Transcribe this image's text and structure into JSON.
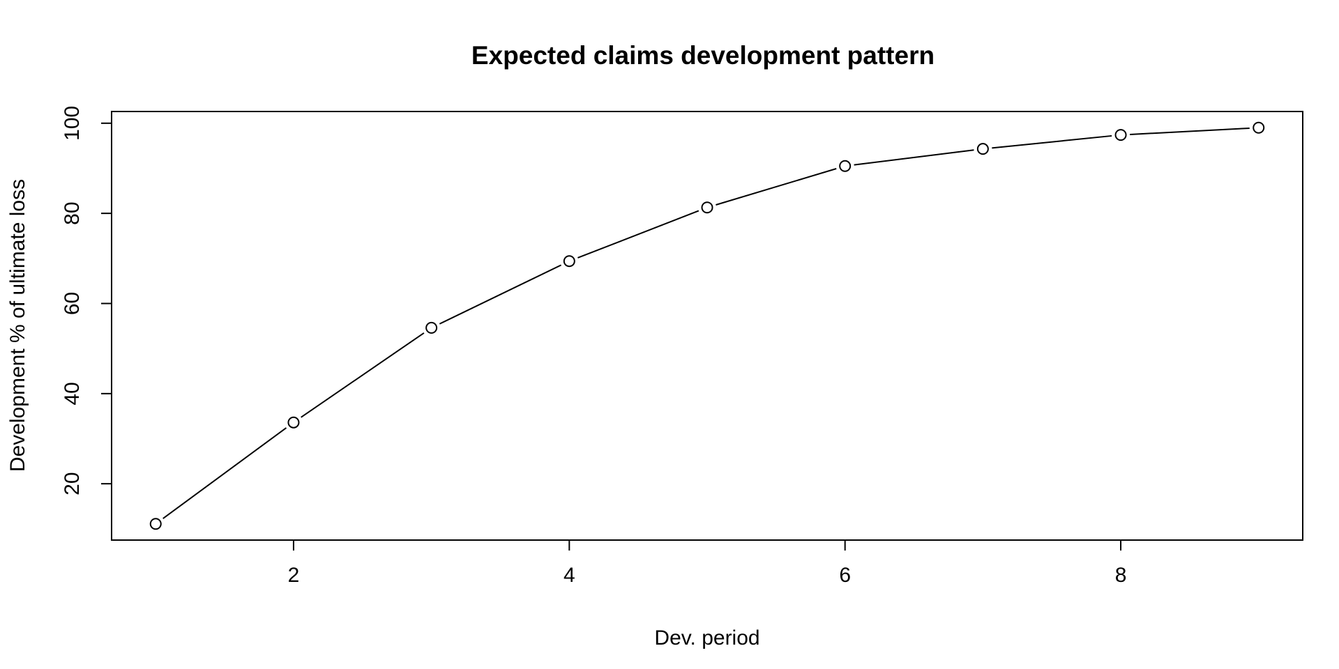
{
  "chart_data": {
    "type": "line",
    "title": "Expected claims development pattern",
    "xlabel": "Dev. period",
    "ylabel": "Development % of ultimate loss",
    "x": [
      1,
      2,
      3,
      4,
      5,
      6,
      7,
      8,
      9
    ],
    "series": [
      {
        "values": [
          11.1,
          33.6,
          54.6,
          69.4,
          81.3,
          90.5,
          94.3,
          97.4,
          99.0
        ]
      }
    ],
    "xticks": [
      2,
      4,
      6,
      8
    ],
    "yticks": [
      20,
      40,
      60,
      80,
      100
    ],
    "xlim": [
      0.68,
      9.32
    ],
    "ylim": [
      7.5,
      102.6
    ],
    "grid": false,
    "legend": "none",
    "marker": "open-circle",
    "line_color": "#000000"
  }
}
